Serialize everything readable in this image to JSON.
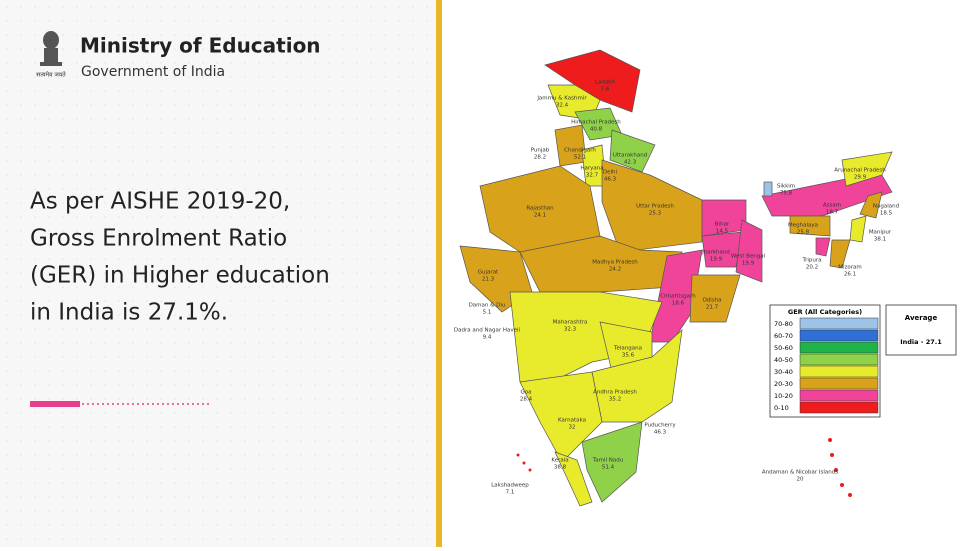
{
  "header": {
    "title": "Ministry of Education",
    "subtitle": "Government of India",
    "emblem_caption": "सत्यमेव जयते"
  },
  "statement": {
    "lines": [
      "As per AISHE 2019-20,",
      "Gross Enrolment Ratio",
      "(GER) in Higher education",
      "in India is 27.1%."
    ]
  },
  "map": {
    "states": [
      {
        "name": "Ladakh",
        "ger": "7.6"
      },
      {
        "name": "Jammu & Kashmir",
        "ger": "32.4"
      },
      {
        "name": "Himachal Pradesh",
        "ger": "40.8"
      },
      {
        "name": "Punjab",
        "ger": "28.2"
      },
      {
        "name": "Chandigarh",
        "ger": "52.1"
      },
      {
        "name": "Uttarakhand",
        "ger": "42.3"
      },
      {
        "name": "Haryana",
        "ger": "32.7"
      },
      {
        "name": "Delhi",
        "ger": "46.3"
      },
      {
        "name": "Rajasthan",
        "ger": "24.1"
      },
      {
        "name": "Uttar Pradesh",
        "ger": "25.3"
      },
      {
        "name": "Gujarat",
        "ger": "21.3"
      },
      {
        "name": "Madhya Pradesh",
        "ger": "24.2"
      },
      {
        "name": "Bihar",
        "ger": "14.5"
      },
      {
        "name": "Jharkhand",
        "ger": "19.9"
      },
      {
        "name": "West Bengal",
        "ger": "19.9"
      },
      {
        "name": "Chhattisgarh",
        "ger": "18.6"
      },
      {
        "name": "Odisha",
        "ger": "21.7"
      },
      {
        "name": "Maharashtra",
        "ger": "32.3"
      },
      {
        "name": "Telangana",
        "ger": "35.6"
      },
      {
        "name": "Andhra Pradesh",
        "ger": "35.2"
      },
      {
        "name": "Goa",
        "ger": "28.4"
      },
      {
        "name": "Karnataka",
        "ger": "32"
      },
      {
        "name": "Tamil Nadu",
        "ger": "51.4"
      },
      {
        "name": "Kerala",
        "ger": "38.8"
      },
      {
        "name": "Puducherry",
        "ger": "46.3"
      },
      {
        "name": "Lakshadweep",
        "ger": "7.1"
      },
      {
        "name": "Daman & Diu",
        "ger": "5.1"
      },
      {
        "name": "Dadra and Nagar Haveli",
        "ger": "9.4"
      },
      {
        "name": "Sikkim",
        "ger": "75.8"
      },
      {
        "name": "Arunachal Pradesh",
        "ger": "29.9"
      },
      {
        "name": "Assam",
        "ger": "18.7"
      },
      {
        "name": "Meghalaya",
        "ger": "25.8"
      },
      {
        "name": "Nagaland",
        "ger": "18.5"
      },
      {
        "name": "Manipur",
        "ger": "38.1"
      },
      {
        "name": "Mizoram",
        "ger": "26.1"
      },
      {
        "name": "Tripura",
        "ger": "20.2"
      },
      {
        "name": "Andaman & Nicobar Islands",
        "ger": "20"
      }
    ],
    "legend": {
      "title": "GER (All Categories)",
      "items": [
        {
          "label": "70-80",
          "color": "#9dc3e6"
        },
        {
          "label": "60-70",
          "color": "#2f6fd6"
        },
        {
          "label": "50-60",
          "color": "#1fb34a"
        },
        {
          "label": "40-50",
          "color": "#8fd24a"
        },
        {
          "label": "30-40",
          "color": "#e8ea2c"
        },
        {
          "label": "20-30",
          "color": "#d9a21b"
        },
        {
          "label": "10-20",
          "color": "#f0449a"
        },
        {
          "label": "0-10",
          "color": "#ee1c1c"
        }
      ]
    },
    "average": {
      "title": "Average",
      "value": "India - 27.1"
    }
  }
}
